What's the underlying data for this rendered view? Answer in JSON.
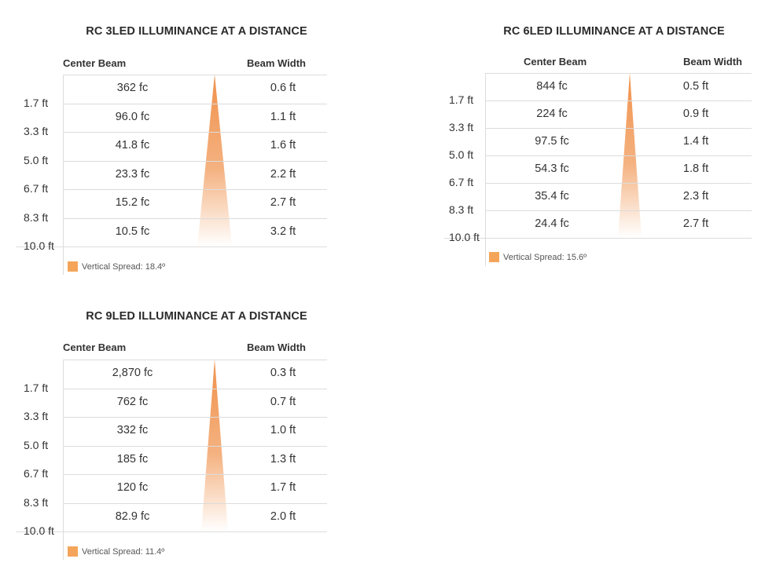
{
  "colors": {
    "beam": "#f0914b",
    "swatch": "#f5a55a",
    "gridline": "#dcdcdc",
    "text": "#333333"
  },
  "chart_data": [
    {
      "type": "table",
      "title": "RC 3LED ILLUMINANCE AT A DISTANCE",
      "columns": [
        "Center Beam",
        "Beam Width"
      ],
      "distances": [
        "1.7 ft",
        "3.3 ft",
        "5.0 ft",
        "6.7 ft",
        "8.3 ft",
        "10.0 ft"
      ],
      "center_beam": [
        "362 fc",
        "96.0 fc",
        "41.8 fc",
        "23.3 fc",
        "15.2 fc",
        "10.5 fc"
      ],
      "beam_width": [
        "0.6 ft",
        "1.1 ft",
        "1.6 ft",
        "2.2 ft",
        "2.7 ft",
        "3.2 ft"
      ],
      "legend": "Vertical Spread: 18.4º"
    },
    {
      "type": "table",
      "title": "RC 6LED ILLUMINANCE AT A DISTANCE",
      "columns": [
        "Center Beam",
        "Beam Width"
      ],
      "distances": [
        "1.7 ft",
        "3.3 ft",
        "5.0 ft",
        "6.7 ft",
        "8.3 ft",
        "10.0 ft"
      ],
      "center_beam": [
        "844 fc",
        "224 fc",
        "97.5 fc",
        "54.3 fc",
        "35.4 fc",
        "24.4 fc"
      ],
      "beam_width": [
        "0.5 ft",
        "0.9 ft",
        "1.4 ft",
        "1.8 ft",
        "2.3 ft",
        "2.7 ft"
      ],
      "legend": "Vertical Spread: 15.6º"
    },
    {
      "type": "table",
      "title": "RC 9LED ILLUMINANCE AT A DISTANCE",
      "columns": [
        "Center Beam",
        "Beam Width"
      ],
      "distances": [
        "1.7 ft",
        "3.3 ft",
        "5.0 ft",
        "6.7 ft",
        "8.3 ft",
        "10.0 ft"
      ],
      "center_beam": [
        "2,870 fc",
        "762 fc",
        "332 fc",
        "185 fc",
        "120 fc",
        "82.9 fc"
      ],
      "beam_width": [
        "0.3 ft",
        "0.7 ft",
        "1.0 ft",
        "1.3 ft",
        "1.7 ft",
        "2.0 ft"
      ],
      "legend": "Vertical Spread: 11.4º"
    }
  ]
}
